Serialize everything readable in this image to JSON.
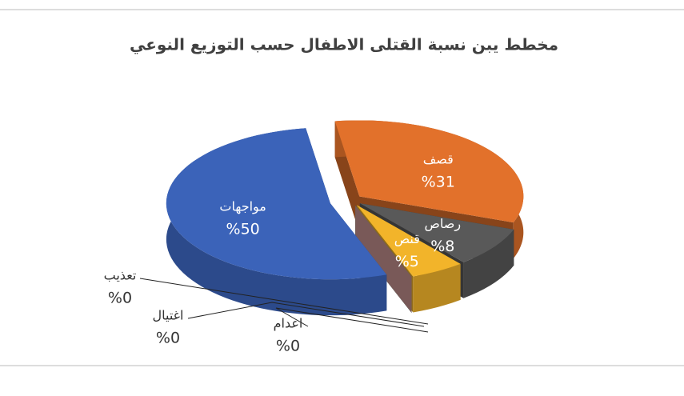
{
  "chart_data": {
    "type": "pie",
    "title": "مخطط يبن نسبة القتلى الاطفال حسب التوزيع النوعي",
    "categories": [
      "قصف",
      "رصاص",
      "قنص",
      "اعدام",
      "اغتيال",
      "تعذيب",
      "مواجهات"
    ],
    "values": [
      31,
      8,
      5,
      0,
      0,
      0,
      50
    ],
    "value_labels": [
      "%31",
      "%8",
      "%5",
      "%0",
      "%0",
      "%0",
      "%50"
    ],
    "colors": [
      "#e2712b",
      "#595959",
      "#f2b42a",
      "#4d9ad6",
      "#5ea35a",
      "#c99592",
      "#3b63b9"
    ]
  }
}
